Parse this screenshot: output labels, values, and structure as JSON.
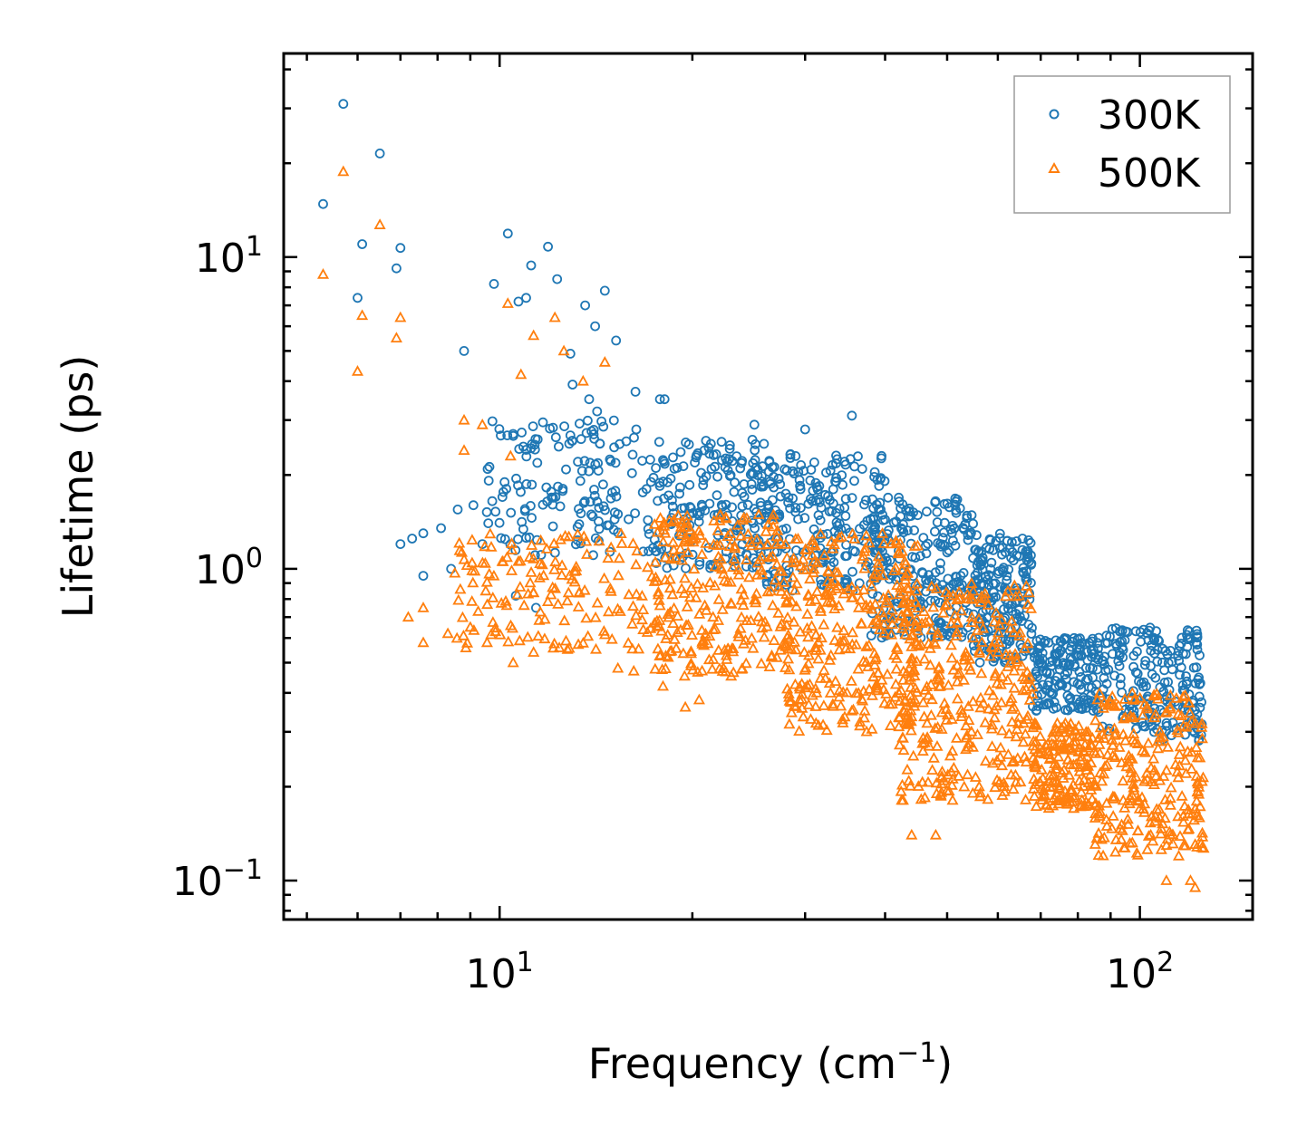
{
  "chart_data": {
    "type": "scatter",
    "title": "",
    "xlabel": "Frequency (cm",
    "xlabel_sup": "−1",
    "xlabel_end": ")",
    "ylabel": "Lifetime (ps)",
    "xscale": "log",
    "yscale": "log",
    "xlim": [
      4.6,
      150
    ],
    "ylim": [
      0.075,
      45
    ],
    "x_ticks": [
      {
        "base": "10",
        "exp": "1",
        "value": 10
      },
      {
        "base": "10",
        "exp": "2",
        "value": 100
      }
    ],
    "y_ticks": [
      {
        "base": "10",
        "exp": "1",
        "value": 10
      },
      {
        "base": "10",
        "exp": "0",
        "value": 1
      },
      {
        "base": "10",
        "exp": "−1",
        "value": 0.1
      }
    ],
    "legend_position": "top-right",
    "series": [
      {
        "name": "300K",
        "marker": "circle",
        "color": "#1f77b4",
        "points": [
          [
            5.3,
            14.8
          ],
          [
            5.7,
            31
          ],
          [
            6.1,
            11
          ],
          [
            6.5,
            21.5
          ],
          [
            6.9,
            9.2
          ],
          [
            7.0,
            10.7
          ],
          [
            6.0,
            7.4
          ],
          [
            8.8,
            5.0
          ],
          [
            9.8,
            8.2
          ],
          [
            10.3,
            11.9
          ],
          [
            10.7,
            7.2
          ],
          [
            11.2,
            9.4
          ],
          [
            11.9,
            10.8
          ],
          [
            12.3,
            8.5
          ],
          [
            13.6,
            7.0
          ],
          [
            14.6,
            7.8
          ],
          [
            14.1,
            6.0
          ],
          [
            15.2,
            5.4
          ],
          [
            11.0,
            7.4
          ],
          [
            12.9,
            4.9
          ],
          [
            13.8,
            3.5
          ],
          [
            13.0,
            3.9
          ],
          [
            14.2,
            3.2
          ],
          [
            16.3,
            3.7
          ],
          [
            17.8,
            3.5
          ],
          [
            18.1,
            3.5
          ],
          [
            25.0,
            2.9
          ],
          [
            30.0,
            2.8
          ],
          [
            35.5,
            3.1
          ],
          [
            7.0,
            1.2
          ],
          [
            7.3,
            1.25
          ],
          [
            7.6,
            1.3
          ],
          [
            8.1,
            1.35
          ],
          [
            8.6,
            1.55
          ],
          [
            9.1,
            1.6
          ],
          [
            9.6,
            1.4
          ],
          [
            10.1,
            1.7
          ],
          [
            9.4,
            1.2
          ],
          [
            8.4,
            1.0
          ],
          [
            7.6,
            0.95
          ],
          [
            10.6,
            0.82
          ],
          [
            11.4,
            0.75
          ]
        ],
        "clouds": [
          {
            "x": [
              9.5,
              17
            ],
            "y": [
              1.1,
              3.0
            ],
            "n": 150
          },
          {
            "x": [
              17,
              26
            ],
            "y": [
              1.0,
              2.6
            ],
            "n": 200
          },
          {
            "x": [
              26,
              40
            ],
            "y": [
              0.85,
              2.4
            ],
            "n": 230
          },
          {
            "x": [
              38,
              55
            ],
            "y": [
              0.6,
              1.7
            ],
            "n": 230
          },
          {
            "x": [
              55,
              68
            ],
            "y": [
              0.5,
              1.3
            ],
            "n": 200
          },
          {
            "x": [
              68,
              85
            ],
            "y": [
              0.35,
              0.6
            ],
            "n": 160
          },
          {
            "x": [
              85,
              125
            ],
            "y": [
              0.28,
              0.65
            ],
            "n": 220
          }
        ]
      },
      {
        "name": "500K",
        "marker": "triangle",
        "color": "#ff7f0e",
        "points": [
          [
            5.3,
            8.8
          ],
          [
            5.7,
            18.8
          ],
          [
            6.5,
            12.7
          ],
          [
            6.0,
            4.3
          ],
          [
            6.1,
            6.5
          ],
          [
            7.0,
            6.4
          ],
          [
            6.9,
            5.5
          ],
          [
            10.3,
            7.1
          ],
          [
            11.3,
            5.6
          ],
          [
            12.2,
            6.4
          ],
          [
            12.6,
            5.0
          ],
          [
            13.5,
            4.0
          ],
          [
            14.6,
            4.6
          ],
          [
            10.8,
            4.2
          ],
          [
            8.8,
            3.0
          ],
          [
            9.4,
            2.9
          ],
          [
            8.8,
            2.4
          ],
          [
            10.4,
            2.3
          ],
          [
            7.2,
            0.7
          ],
          [
            7.6,
            0.75
          ],
          [
            7.6,
            0.58
          ],
          [
            8.3,
            0.62
          ],
          [
            9.0,
            0.65
          ],
          [
            10.5,
            0.5
          ],
          [
            11.3,
            0.54
          ],
          [
            15.3,
            0.48
          ],
          [
            16.2,
            0.47
          ],
          [
            18.0,
            0.42
          ],
          [
            19.5,
            0.36
          ],
          [
            20.5,
            0.38
          ],
          [
            44.0,
            0.14
          ],
          [
            48.0,
            0.14
          ],
          [
            110,
            0.1
          ],
          [
            115,
            0.12
          ],
          [
            120,
            0.1
          ],
          [
            122,
            0.095
          ]
        ],
        "clouds": [
          {
            "x": [
              8.5,
              17
            ],
            "y": [
              0.55,
              1.3
            ],
            "n": 150
          },
          {
            "x": [
              17,
              28
            ],
            "y": [
              0.45,
              1.5
            ],
            "n": 260
          },
          {
            "x": [
              28,
              45
            ],
            "y": [
              0.3,
              1.3
            ],
            "n": 320
          },
          {
            "x": [
              42,
              68
            ],
            "y": [
              0.18,
              0.9
            ],
            "n": 320
          },
          {
            "x": [
              68,
              85
            ],
            "y": [
              0.17,
              0.32
            ],
            "n": 170
          },
          {
            "x": [
              85,
              126
            ],
            "y": [
              0.12,
              0.4
            ],
            "n": 250
          }
        ]
      }
    ]
  }
}
